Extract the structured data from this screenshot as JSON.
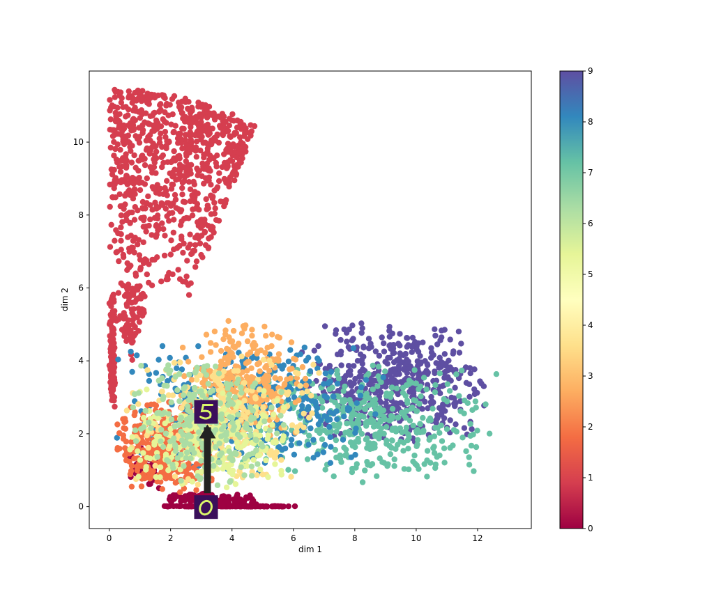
{
  "chart_data": {
    "type": "scatter",
    "title": "",
    "xlabel": "dim 1",
    "ylabel": "dim 2",
    "xlim": [
      -0.65,
      13.75
    ],
    "ylim": [
      -0.6,
      11.95
    ],
    "xticks": [
      0,
      2,
      4,
      6,
      8,
      10,
      12
    ],
    "yticks": [
      0,
      2,
      4,
      6,
      8,
      10
    ],
    "grid": false,
    "colormap": "Spectral",
    "colorbar": {
      "min": 0,
      "max": 9,
      "ticks": [
        0,
        1,
        2,
        3,
        4,
        5,
        6,
        7,
        8,
        9
      ]
    },
    "annotation": {
      "type": "arrow",
      "from": [
        3.2,
        -0.05
      ],
      "to": [
        3.2,
        2.6
      ],
      "from_label": "digit image 0",
      "to_label": "digit image 5",
      "color": "#222222"
    },
    "series": [
      {
        "value": 0,
        "color": "#9e0142",
        "regions": [
          {
            "points": 160,
            "x": [
              1.6,
              6.1
            ],
            "y": [
              0.0,
              0.02
            ]
          },
          {
            "points": 110,
            "x": [
              1.7,
              5.0
            ],
            "y": [
              0.02,
              0.4
            ]
          },
          {
            "points": 50,
            "x": [
              0.4,
              1.8
            ],
            "y": [
              0.3,
              1.9
            ]
          }
        ]
      },
      {
        "value": 1,
        "color": "#d53e4f",
        "regions": [
          {
            "points": 850,
            "arc": true,
            "r_range": [
              6.1,
              11.7
            ],
            "angle_range": [
              1.15,
              1.57
            ],
            "center": [
              0,
              0
            ]
          },
          {
            "points": 140,
            "x": [
              0.0,
              0.2
            ],
            "y": [
              2.5,
              6.1
            ]
          },
          {
            "points": 90,
            "x": [
              0.2,
              1.2
            ],
            "y": [
              3.8,
              6.8
            ]
          }
        ]
      },
      {
        "value": 2,
        "color": "#f46d43",
        "regions": [
          {
            "points": 380,
            "x": [
              0.1,
              3.6
            ],
            "y": [
              0.3,
              3.0
            ]
          }
        ]
      },
      {
        "value": 3,
        "color": "#fdae61",
        "regions": [
          {
            "points": 300,
            "x": [
              2.2,
              6.6
            ],
            "y": [
              1.8,
              5.2
            ]
          }
        ]
      },
      {
        "value": 4,
        "color": "#fee08b",
        "regions": [
          {
            "points": 260,
            "x": [
              0.5,
              7.0
            ],
            "y": [
              0.5,
              4.2
            ]
          }
        ]
      },
      {
        "value": 5,
        "color": "#e6f598",
        "regions": [
          {
            "points": 240,
            "x": [
              0.5,
              6.0
            ],
            "y": [
              0.4,
              3.3
            ]
          }
        ]
      },
      {
        "value": 6,
        "color": "#abdda4",
        "regions": [
          {
            "points": 240,
            "x": [
              0.6,
              5.8
            ],
            "y": [
              0.3,
              4.3
            ]
          }
        ]
      },
      {
        "value": 7,
        "color": "#66c2a5",
        "regions": [
          {
            "points": 440,
            "x": [
              3.6,
              12.8
            ],
            "y": [
              0.6,
              4.1
            ]
          }
        ]
      },
      {
        "value": 8,
        "color": "#3288bd",
        "regions": [
          {
            "points": 420,
            "x": [
              0.1,
              9.0
            ],
            "y": [
              0.8,
              4.6
            ]
          }
        ]
      },
      {
        "value": 9,
        "color": "#5e4fa2",
        "regions": [
          {
            "points": 520,
            "x": [
              6.2,
              12.4
            ],
            "y": [
              1.6,
              5.2
            ]
          }
        ]
      }
    ]
  }
}
